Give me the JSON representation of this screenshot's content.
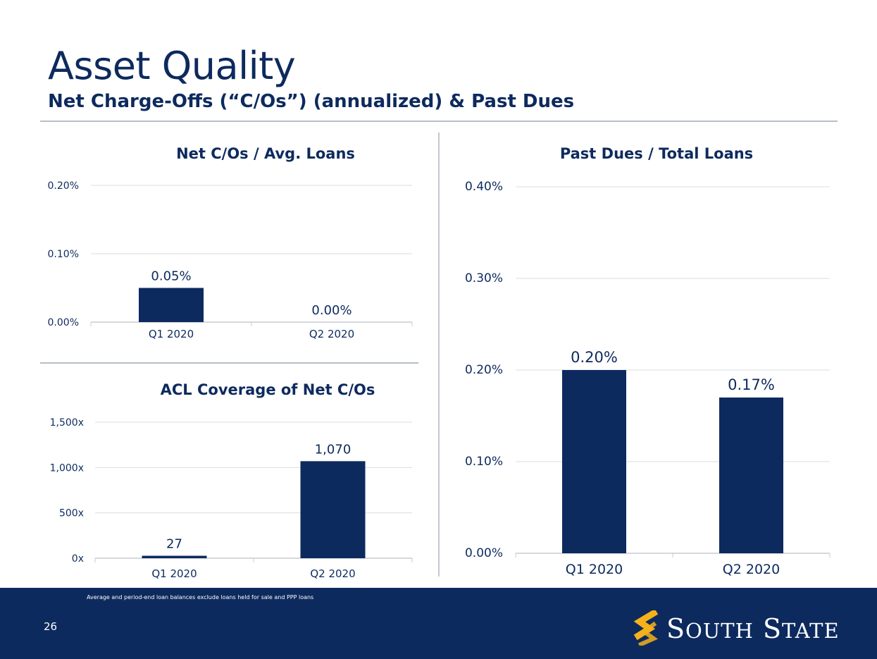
{
  "header": {
    "title": "Asset Quality",
    "subtitle": "Net Charge-Offs (“C/Os”) (annualized) & Past Dues"
  },
  "colors": {
    "bar": "#0d2a5e",
    "text": "#0d2a5e",
    "footer": "#0d2a5e",
    "logo_accent": "#f5b21b",
    "grid": "#d9dde3"
  },
  "chart_data": [
    {
      "id": "netco",
      "type": "bar",
      "title": "Net C/Os / Avg. Loans",
      "categories": [
        "Q1 2020",
        "Q2 2020"
      ],
      "values": [
        0.05,
        0.0
      ],
      "value_labels": [
        "0.05%",
        "0.00%"
      ],
      "ylim": [
        0,
        0.2
      ],
      "yticks": [
        0,
        0.1,
        0.2
      ],
      "ytick_labels": [
        "0.00%",
        "0.10%",
        "0.20%"
      ],
      "grid": true
    },
    {
      "id": "acl",
      "type": "bar",
      "title": "ACL Coverage of Net C/Os",
      "categories": [
        "Q1 2020",
        "Q2 2020"
      ],
      "values": [
        27,
        1070
      ],
      "value_labels": [
        "27",
        "1,070"
      ],
      "ylim": [
        0,
        1500
      ],
      "yticks": [
        0,
        500,
        1000,
        1500
      ],
      "ytick_labels": [
        "0x",
        "500x",
        "1,000x",
        "1,500x"
      ],
      "grid": true
    },
    {
      "id": "pastdue",
      "type": "bar",
      "title": "Past Dues / Total Loans",
      "categories": [
        "Q1 2020",
        "Q2 2020"
      ],
      "values": [
        0.2,
        0.17
      ],
      "value_labels": [
        "0.20%",
        "0.17%"
      ],
      "ylim": [
        0,
        0.4
      ],
      "yticks": [
        0,
        0.1,
        0.2,
        0.3,
        0.4
      ],
      "ytick_labels": [
        "0.00%",
        "0.10%",
        "0.20%",
        "0.30%",
        "0.40%"
      ],
      "grid": true
    }
  ],
  "footer": {
    "footnote": "Average and period-end loan balances exclude loans held for sale and PPP loans",
    "page_number": "26",
    "logo_text": "South State",
    "logo_icon": "s-mark-icon"
  }
}
